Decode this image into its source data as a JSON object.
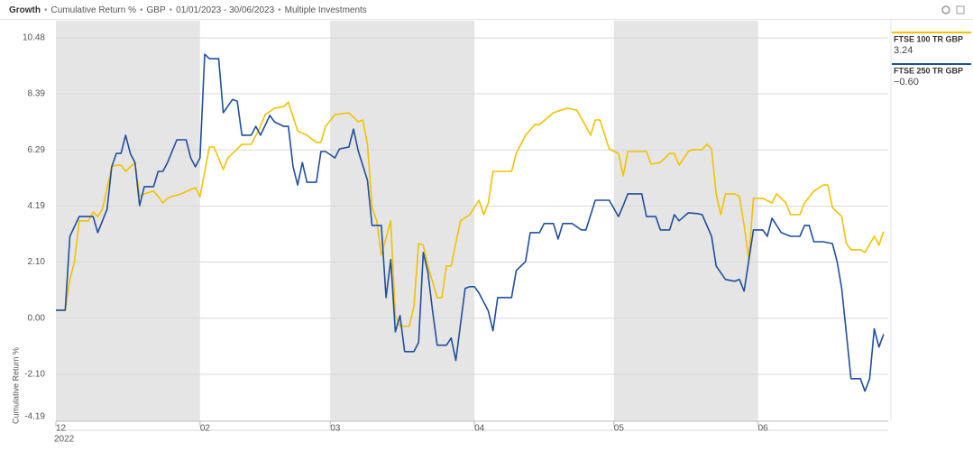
{
  "header": {
    "title": "Growth",
    "items": [
      "Cumulative Return %",
      "GBP",
      "01/01/2023 - 30/06/2023",
      "Multiple Investments"
    ]
  },
  "chart_data": {
    "type": "line",
    "y_label": "Cumulative Return %",
    "x_year": "2022",
    "legend": "right",
    "grid": true,
    "band_color": "#e5e5e5",
    "xlim": [
      0,
      179
    ],
    "xticks": [
      {
        "value": 0,
        "label": "12"
      },
      {
        "value": 31,
        "label": "02"
      },
      {
        "value": 59,
        "label": "03"
      },
      {
        "value": 90,
        "label": "04"
      },
      {
        "value": 120,
        "label": "05"
      },
      {
        "value": 151,
        "label": "06"
      }
    ],
    "ylim": [
      -4.19,
      10.48
    ],
    "yticks": [
      10.48,
      8.39,
      6.29,
      4.19,
      {
        "value": 2.1,
        "label": "2.10"
      },
      {
        "value": 0,
        "label": "0.00"
      },
      {
        "value": -2.1,
        "label": "-2.10"
      },
      -4.19
    ],
    "series": [
      {
        "name": "FTSE 100 TR GBP",
        "color": "#f2c200",
        "end_value": 3.24,
        "x": [
          0,
          2,
          3,
          4,
          5,
          7,
          8,
          9,
          10,
          12,
          13,
          14,
          15,
          17,
          18,
          19,
          21,
          22,
          23,
          24,
          25,
          27,
          29,
          30,
          31,
          33,
          34,
          36,
          37,
          39,
          40,
          42,
          44,
          45,
          47,
          49,
          50,
          52,
          54,
          56,
          57,
          58,
          60,
          63,
          65,
          66,
          67,
          68,
          69,
          70,
          72,
          73,
          74,
          76,
          77,
          78,
          79,
          80,
          82,
          83,
          84,
          85,
          87,
          89,
          91,
          92,
          93,
          94,
          96,
          98,
          99,
          101,
          103,
          104,
          107,
          108,
          110,
          112,
          114,
          115,
          116,
          117,
          119,
          121,
          122,
          123,
          125,
          127,
          128,
          130,
          132,
          133,
          134,
          136,
          137,
          139,
          140,
          141,
          142,
          143,
          144,
          146,
          147,
          148,
          149,
          150,
          152,
          154,
          155,
          157,
          158,
          160,
          161,
          163,
          165,
          166,
          167,
          169,
          170,
          171,
          173,
          174,
          176,
          177,
          178
        ],
        "values": [
          0.3,
          0.3,
          1.45,
          2.12,
          3.64,
          3.64,
          3.97,
          3.8,
          4.07,
          5.66,
          5.72,
          5.72,
          5.49,
          5.82,
          4.55,
          4.65,
          4.75,
          4.55,
          4.31,
          4.48,
          4.55,
          4.65,
          4.81,
          4.88,
          4.55,
          6.4,
          6.4,
          5.56,
          5.99,
          6.33,
          6.5,
          6.5,
          7.17,
          7.61,
          7.85,
          7.91,
          8.08,
          7.0,
          6.84,
          6.57,
          6.57,
          7.17,
          7.61,
          7.68,
          7.34,
          7.41,
          6.5,
          4.14,
          3.64,
          2.36,
          3.64,
          0.1,
          -0.3,
          -0.3,
          0.44,
          2.79,
          2.73,
          1.95,
          0.77,
          0.77,
          1.95,
          1.95,
          3.64,
          3.87,
          4.41,
          3.87,
          4.31,
          5.49,
          5.49,
          5.49,
          6.16,
          6.84,
          7.24,
          7.24,
          7.68,
          7.74,
          7.85,
          7.78,
          7.17,
          6.84,
          7.41,
          7.41,
          6.33,
          6.16,
          5.32,
          6.23,
          6.23,
          6.23,
          5.76,
          5.82,
          6.16,
          6.16,
          5.72,
          6.23,
          6.3,
          6.3,
          6.5,
          6.33,
          4.65,
          3.87,
          4.65,
          4.65,
          4.55,
          3.47,
          2.19,
          4.48,
          4.48,
          4.31,
          4.65,
          4.31,
          3.87,
          3.87,
          4.31,
          4.75,
          4.98,
          4.98,
          4.14,
          3.8,
          2.79,
          2.56,
          2.56,
          2.46,
          3.06,
          2.73,
          3.24
        ]
      },
      {
        "name": "FTSE 250 TR GBP",
        "color": "#1f4f9e",
        "end_value": -0.6,
        "end_label": "−0.60",
        "x": [
          0,
          2,
          3,
          5,
          7,
          8,
          9,
          11,
          12,
          13,
          14,
          15,
          16,
          17,
          18,
          19,
          21,
          22,
          23,
          24,
          26,
          28,
          29,
          30,
          31,
          32,
          33,
          35,
          36,
          38,
          39,
          40,
          42,
          43,
          44,
          46,
          47,
          49,
          50,
          51,
          52,
          53,
          54,
          56,
          57,
          58,
          60,
          61,
          63,
          64,
          65,
          67,
          68,
          70,
          71,
          72,
          73,
          74,
          75,
          77,
          78,
          79,
          80,
          81,
          82,
          84,
          85,
          86,
          88,
          89,
          90,
          91,
          93,
          94,
          95,
          97,
          98,
          99,
          101,
          102,
          104,
          105,
          107,
          108,
          109,
          111,
          113,
          114,
          116,
          118,
          119,
          121,
          122,
          123,
          126,
          127,
          129,
          130,
          132,
          133,
          134,
          136,
          138,
          139,
          141,
          142,
          144,
          146,
          147,
          148,
          150,
          152,
          153,
          154,
          156,
          158,
          160,
          161,
          162,
          163,
          165,
          167,
          168,
          169,
          170,
          171,
          173,
          174,
          175,
          176,
          177,
          178
        ],
        "values": [
          0.3,
          0.3,
          3.06,
          3.8,
          3.8,
          3.8,
          3.2,
          4.07,
          5.66,
          6.16,
          6.16,
          6.84,
          6.16,
          5.82,
          4.21,
          4.92,
          4.92,
          5.49,
          5.49,
          5.82,
          6.67,
          6.67,
          5.99,
          5.66,
          5.99,
          9.87,
          9.7,
          9.7,
          7.68,
          8.18,
          8.11,
          6.84,
          6.84,
          7.17,
          6.84,
          7.58,
          7.34,
          7.17,
          7.17,
          5.66,
          4.98,
          5.82,
          5.08,
          5.08,
          6.23,
          6.23,
          5.99,
          6.33,
          6.4,
          7.07,
          6.26,
          5.15,
          3.47,
          3.47,
          0.77,
          2.19,
          -0.51,
          0.1,
          -1.25,
          -1.25,
          -0.91,
          2.46,
          1.72,
          0.27,
          -1.01,
          -1.01,
          -0.74,
          -1.58,
          1.11,
          1.18,
          1.18,
          0.94,
          0.27,
          -0.47,
          0.77,
          0.77,
          0.77,
          1.78,
          2.12,
          3.2,
          3.2,
          3.54,
          3.54,
          2.96,
          3.54,
          3.54,
          3.3,
          3.3,
          4.41,
          4.41,
          4.41,
          3.8,
          4.21,
          4.65,
          4.65,
          3.8,
          3.8,
          3.3,
          3.3,
          3.87,
          3.64,
          3.94,
          3.91,
          3.87,
          3.06,
          1.95,
          1.45,
          1.38,
          1.45,
          1.01,
          3.3,
          3.3,
          3.06,
          3.74,
          3.2,
          3.06,
          3.06,
          3.47,
          3.47,
          2.86,
          2.86,
          2.79,
          2.12,
          1.11,
          -0.57,
          -2.26,
          -2.26,
          -2.73,
          -2.26,
          -0.4,
          -1.08,
          -0.6
        ]
      }
    ]
  }
}
